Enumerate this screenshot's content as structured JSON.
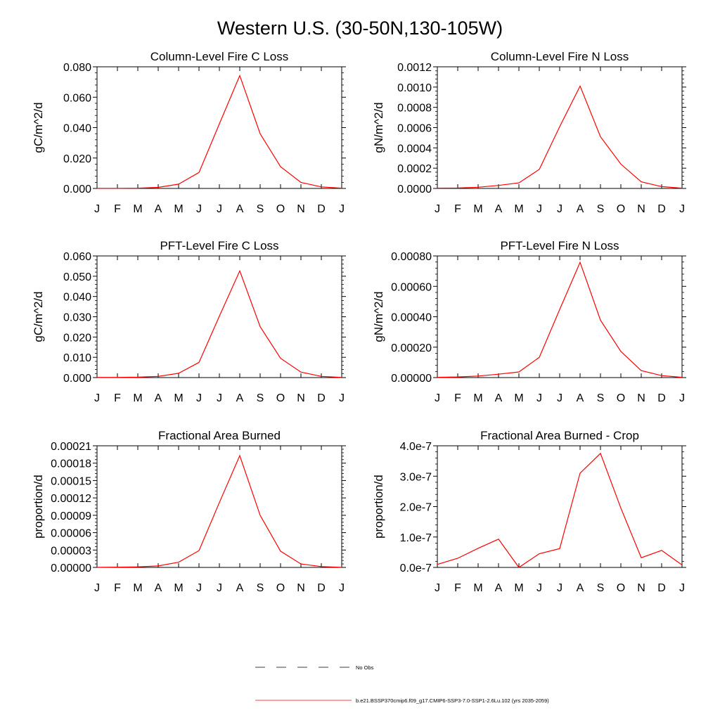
{
  "figure": {
    "title": "Western U.S. (30-50N,130-105W)"
  },
  "legend": [
    {
      "label": "No Obs",
      "color": "#000000",
      "style": "dashed"
    },
    {
      "label": "b.e21.BSSP370cmip6.f09_g17.CMIP6-SSP3-7.0-SSP1-2.6Lu.102 (yrs 2035-2059)",
      "color": "#ff0000",
      "style": "solid"
    }
  ],
  "chart_data": [
    {
      "type": "line",
      "title": "Column-Level Fire C Loss",
      "xlabel": "",
      "ylabel": "gC/m^2/d",
      "categories": [
        "J",
        "F",
        "M",
        "A",
        "M",
        "J",
        "J",
        "A",
        "S",
        "O",
        "N",
        "D",
        "J"
      ],
      "ylim": [
        0,
        0.08
      ],
      "yticks": [
        0,
        0.02,
        0.04,
        0.06,
        0.08
      ],
      "ytick_labels": [
        "0.000",
        "0.020",
        "0.040",
        "0.060",
        "0.080"
      ],
      "grid": false,
      "series": [
        {
          "color": "#ff0000",
          "values": [
            0.0001,
            0.0001,
            0.0002,
            0.0007,
            0.0028,
            0.0105,
            0.0425,
            0.0742,
            0.036,
            0.0143,
            0.004,
            0.001,
            0.0002
          ]
        }
      ]
    },
    {
      "type": "line",
      "title": "Column-Level Fire N Loss",
      "xlabel": "",
      "ylabel": "gN/m^2/d",
      "categories": [
        "J",
        "F",
        "M",
        "A",
        "M",
        "J",
        "J",
        "A",
        "S",
        "O",
        "N",
        "D",
        "J"
      ],
      "ylim": [
        0,
        0.0012
      ],
      "yticks": [
        0,
        0.0002,
        0.0004,
        0.0006,
        0.0008,
        0.001,
        0.0012
      ],
      "ytick_labels": [
        "0.0000",
        "0.0002",
        "0.0004",
        "0.0006",
        "0.0008",
        "0.0010",
        "0.0012"
      ],
      "grid": false,
      "series": [
        {
          "color": "#ff0000",
          "values": [
            3e-06,
            5e-06,
            1.2e-05,
            3e-05,
            5.5e-05,
            0.000188,
            0.00061,
            0.00101,
            0.00051,
            0.00024,
            6.5e-05,
            1.8e-05,
            3e-06
          ]
        }
      ]
    },
    {
      "type": "line",
      "title": "PFT-Level Fire C Loss",
      "xlabel": "",
      "ylabel": "gC/m^2/d",
      "categories": [
        "J",
        "F",
        "M",
        "A",
        "M",
        "J",
        "J",
        "A",
        "S",
        "O",
        "N",
        "D",
        "J"
      ],
      "ylim": [
        0,
        0.06
      ],
      "yticks": [
        0,
        0.01,
        0.02,
        0.03,
        0.04,
        0.05,
        0.06
      ],
      "ytick_labels": [
        "0.000",
        "0.010",
        "0.020",
        "0.030",
        "0.040",
        "0.050",
        "0.060"
      ],
      "grid": false,
      "series": [
        {
          "color": "#ff0000",
          "values": [
            0.0001,
            0.0001,
            0.0002,
            0.0006,
            0.0021,
            0.0075,
            0.0303,
            0.0526,
            0.0251,
            0.0095,
            0.0027,
            0.0006,
            0.0001
          ]
        }
      ]
    },
    {
      "type": "line",
      "title": "PFT-Level Fire N Loss",
      "xlabel": "",
      "ylabel": "gN/m^2/d",
      "categories": [
        "J",
        "F",
        "M",
        "A",
        "M",
        "J",
        "J",
        "A",
        "S",
        "O",
        "N",
        "D",
        "J"
      ],
      "ylim": [
        0,
        0.0008
      ],
      "yticks": [
        0,
        0.0002,
        0.0004,
        0.0006,
        0.0008
      ],
      "ytick_labels": [
        "0.00000",
        "0.00020",
        "0.00040",
        "0.00060",
        "0.00080"
      ],
      "grid": false,
      "series": [
        {
          "color": "#ff0000",
          "values": [
            2e-06,
            4e-06,
            1e-05,
            2.2e-05,
            3.7e-05,
            0.000133,
            0.000448,
            0.000758,
            0.000378,
            0.000172,
            4.6e-05,
            1.3e-05,
            2e-06
          ]
        }
      ]
    },
    {
      "type": "line",
      "title": "Fractional Area Burned",
      "xlabel": "",
      "ylabel": "proportion/d",
      "categories": [
        "J",
        "F",
        "M",
        "A",
        "M",
        "J",
        "J",
        "A",
        "S",
        "O",
        "N",
        "D",
        "J"
      ],
      "ylim": [
        0,
        0.00021
      ],
      "yticks": [
        0,
        3e-05,
        6e-05,
        9e-05,
        0.00012,
        0.00015,
        0.00018,
        0.00021
      ],
      "ytick_labels": [
        "0.00000",
        "0.00003",
        "0.00006",
        "0.00009",
        "0.00012",
        "0.00015",
        "0.00018",
        "0.00021"
      ],
      "grid": false,
      "series": [
        {
          "color": "#ff0000",
          "values": [
            3e-07,
            5e-07,
            1e-06,
            2.5e-06,
            9e-06,
            2.9e-05,
            0.000112,
            0.000193,
            9e-05,
            2.8e-05,
            6e-06,
            1.5e-06,
            3e-07
          ]
        }
      ]
    },
    {
      "type": "line",
      "title": "Fractional Area Burned - Crop",
      "xlabel": "",
      "ylabel": "proportion/d",
      "categories": [
        "J",
        "F",
        "M",
        "A",
        "M",
        "J",
        "J",
        "A",
        "S",
        "O",
        "N",
        "D",
        "J"
      ],
      "ylim": [
        0,
        4e-07
      ],
      "yticks": [
        0,
        1e-07,
        2e-07,
        3e-07,
        4e-07
      ],
      "ytick_labels": [
        "0.0e-7",
        "1.0e-7",
        "2.0e-7",
        "3.0e-7",
        "4.0e-7"
      ],
      "grid": false,
      "series": [
        {
          "color": "#ff0000",
          "values": [
            1e-08,
            3e-08,
            6.3e-08,
            9.3e-08,
            0,
            4.5e-08,
            6.2e-08,
            3.1e-07,
            3.75e-07,
            1.95e-07,
            3.2e-08,
            5.6e-08,
            8e-09
          ]
        }
      ]
    }
  ]
}
